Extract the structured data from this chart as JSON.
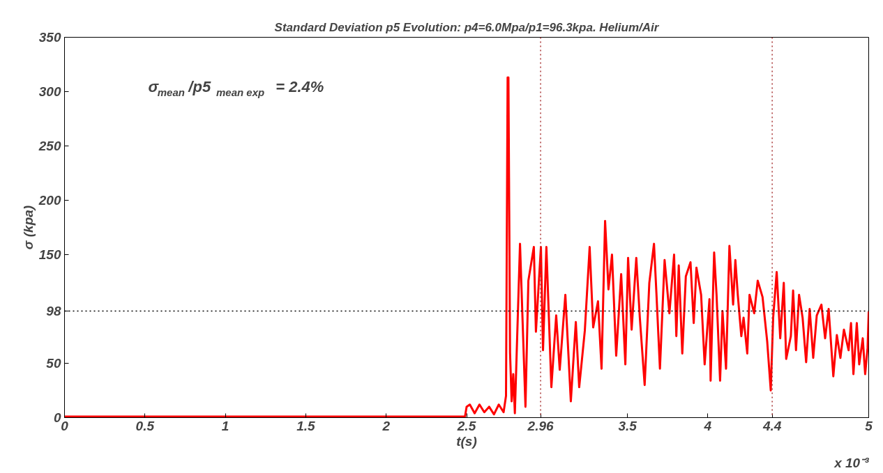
{
  "chart_data": {
    "type": "line",
    "title": "Standard Deviation p5 Evolution: p4=6.0Mpa/p1=96.3kpa. Helium/Air",
    "xlabel": "t(s)",
    "ylabel": "σ (kpa)",
    "annotations": [
      "σ$_{mean}$/p5$_{mean exp}$ = 2.4%",
      "x 10⁻³"
    ],
    "x": [
      0,
      0.5,
      1,
      1.5,
      2,
      2.49,
      2.5,
      2.52,
      2.55,
      2.58,
      2.61,
      2.64,
      2.67,
      2.7,
      2.73,
      2.745,
      2.755,
      2.76,
      2.765,
      2.77,
      2.78,
      2.79,
      2.8,
      2.832,
      2.866,
      2.884,
      2.918,
      2.931,
      2.962,
      2.975,
      2.996,
      3.027,
      3.057,
      3.079,
      3.114,
      3.148,
      3.179,
      3.2,
      3.235,
      3.265,
      3.287,
      3.317,
      3.339,
      3.361,
      3.382,
      3.404,
      3.43,
      3.461,
      3.487,
      3.504,
      3.526,
      3.555,
      3.577,
      3.607,
      3.636,
      3.665,
      3.68,
      3.702,
      3.731,
      3.761,
      3.79,
      3.804,
      3.819,
      3.841,
      3.863,
      3.892,
      3.912,
      3.929,
      3.958,
      3.98,
      4.01,
      4.017,
      4.039,
      4.054,
      4.076,
      4.091,
      4.113,
      4.134,
      4.157,
      4.171,
      4.186,
      4.208,
      4.222,
      4.245,
      4.259,
      4.288,
      4.31,
      4.34,
      4.369,
      4.391,
      4.406,
      4.428,
      4.45,
      4.472,
      4.487,
      4.516,
      4.53,
      4.548,
      4.567,
      4.589,
      4.611,
      4.633,
      4.655,
      4.677,
      4.706,
      4.729,
      4.751,
      4.78,
      4.802,
      4.824,
      4.846,
      4.875,
      4.89,
      4.905,
      4.926,
      4.941,
      4.963,
      4.978,
      4.993,
      5.0
    ],
    "series": [
      {
        "color": "#ff0000",
        "values": [
          1,
          1,
          1,
          1,
          1,
          1,
          10,
          12,
          4,
          12,
          5,
          10,
          3,
          12,
          5,
          20,
          313,
          313,
          190,
          60,
          15,
          40,
          4,
          160,
          10,
          126,
          157,
          79,
          157,
          62,
          157,
          28,
          94,
          44,
          113,
          15,
          88,
          28,
          80,
          157,
          83,
          107,
          45,
          181,
          118,
          150,
          57,
          132,
          49,
          147,
          81,
          147,
          92,
          30,
          124,
          160,
          115,
          45,
          145,
          96,
          150,
          75,
          140,
          59,
          130,
          143,
          87,
          138,
          113,
          49,
          109,
          34,
          152,
          113,
          34,
          98,
          45,
          158,
          104,
          145,
          113,
          75,
          92,
          59,
          113,
          96,
          126,
          111,
          70,
          25,
          92,
          134,
          73,
          124,
          54,
          75,
          117,
          62,
          113,
          92,
          51,
          100,
          55,
          94,
          104,
          73,
          100,
          38,
          76,
          55,
          81,
          62,
          87,
          40,
          87,
          49,
          73,
          40,
          64,
          97
        ]
      }
    ],
    "xlim": [
      0,
      5
    ],
    "ylim": [
      0,
      350
    ],
    "xticks": [
      0,
      0.5,
      1,
      1.5,
      2,
      2.5,
      2.96,
      3.5,
      4,
      4.4,
      5
    ],
    "yticks": [
      0,
      50,
      98,
      150,
      200,
      250,
      300,
      350
    ],
    "ref_lines": [
      {
        "axis": "y",
        "value": 98,
        "color": "#000000",
        "line_style": "dotted"
      },
      {
        "axis": "x",
        "value": 2.96,
        "color": "#a83232",
        "line_style": "dotted"
      },
      {
        "axis": "x",
        "value": 4.4,
        "color": "#a83232",
        "line_style": "dotted"
      }
    ],
    "grid": false,
    "line_style": "solid"
  }
}
